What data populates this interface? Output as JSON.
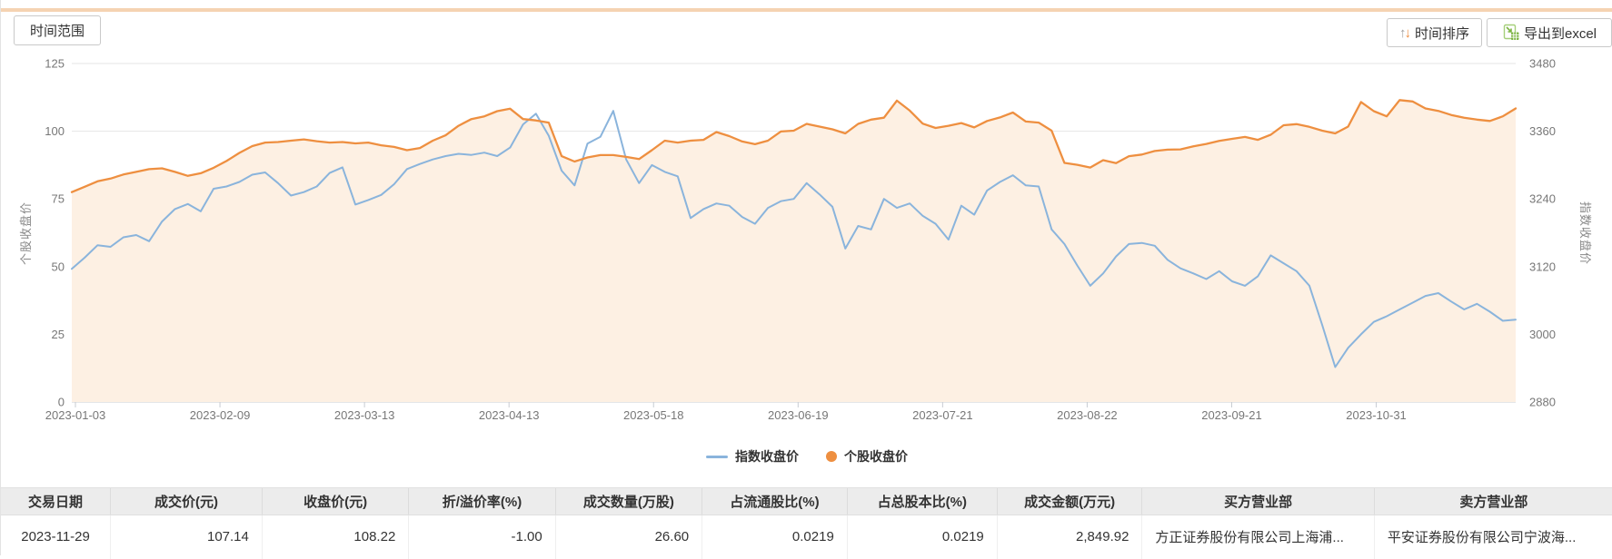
{
  "toolbar": {
    "time_range_label": "时间范围",
    "sort_label": "时间排序",
    "export_label": "导出到excel"
  },
  "colors": {
    "blue": "#8AB4DC",
    "orange": "#EE8F40",
    "area_fill": "#FDF0E3",
    "grid": "#E6E6E6",
    "axis_line": "#C8CCD2",
    "axis_text": "#777777",
    "text": "#333333",
    "top_bar": "#F5D3B2",
    "excel_green": "#7CB342",
    "sort_up": "#9E9E9E",
    "sort_down": "#EF8B3C",
    "header_bg": "#ECECEC"
  },
  "chart_data": {
    "type": "line",
    "title": "",
    "grid": true,
    "legend_position": "bottom-center",
    "x_ticks": [
      "2023-01-03",
      "2023-02-09",
      "2023-03-13",
      "2023-04-13",
      "2023-05-18",
      "2023-06-19",
      "2023-07-21",
      "2023-08-22",
      "2023-09-21",
      "2023-10-31"
    ],
    "left_axis": {
      "label": "个股收盘价",
      "min": 0,
      "max": 125,
      "ticks": [
        125,
        100,
        75,
        50,
        25,
        0
      ]
    },
    "right_axis": {
      "label": "指数收盘价",
      "min": 2880,
      "max": 3480,
      "ticks": [
        3480,
        3360,
        3240,
        3120,
        3000,
        2880
      ]
    },
    "legend": [
      {
        "label": "指数收盘价",
        "marker": "line",
        "color": "#8AB4DC"
      },
      {
        "label": "个股收盘价",
        "marker": "circle",
        "color": "#EE8F40"
      }
    ],
    "series": [
      {
        "name": "指数收盘价",
        "axis": "right",
        "type": "line",
        "color": "#8AB4DC",
        "values": [
          3116,
          3136,
          3158,
          3155,
          3172,
          3176,
          3165,
          3200,
          3222,
          3231,
          3218,
          3258,
          3262,
          3270,
          3283,
          3287,
          3268,
          3246,
          3252,
          3262,
          3286,
          3296,
          3230,
          3238,
          3247,
          3266,
          3293,
          3302,
          3310,
          3316,
          3320,
          3318,
          3322,
          3316,
          3331,
          3372,
          3391,
          3352,
          3290,
          3264,
          3338,
          3350,
          3396,
          3310,
          3268,
          3300,
          3288,
          3280,
          3206,
          3222,
          3232,
          3228,
          3208,
          3196,
          3224,
          3236,
          3240,
          3268,
          3248,
          3226,
          3152,
          3192,
          3186,
          3240,
          3224,
          3232,
          3210,
          3196,
          3168,
          3228,
          3212,
          3255,
          3270,
          3282,
          3264,
          3262,
          3186,
          3160,
          3122,
          3086,
          3108,
          3138,
          3160,
          3162,
          3157,
          3132,
          3117,
          3108,
          3098,
          3112,
          3094,
          3086,
          3103,
          3140,
          3126,
          3112,
          3086,
          3016,
          2942,
          2976,
          3000,
          3022,
          3032,
          3044,
          3056,
          3068,
          3073,
          3058,
          3044,
          3054,
          3040,
          3024,
          3026
        ]
      },
      {
        "name": "个股收盘价",
        "axis": "left",
        "type": "area",
        "color": "#EE8F40",
        "fill": "#FDF0E3",
        "values": [
          77.5,
          79.5,
          81.5,
          82.5,
          84,
          85,
          86,
          86.3,
          85,
          83.5,
          84.5,
          86.5,
          89,
          92,
          94.5,
          95.8,
          96,
          96.5,
          97,
          96.3,
          95.8,
          96,
          95.5,
          95.8,
          94.8,
          94.2,
          93,
          93.8,
          96.5,
          98.5,
          102,
          104.5,
          105.5,
          107.4,
          108.3,
          104.5,
          104,
          103.2,
          90.8,
          88.8,
          90.3,
          91.2,
          91.2,
          90.5,
          89.7,
          93,
          96.5,
          95.8,
          96.5,
          96.8,
          99.7,
          98.2,
          96.2,
          95.2,
          96.5,
          99.9,
          100.2,
          102.7,
          101.7,
          100.7,
          99.2,
          102.7,
          104.3,
          105,
          111.3,
          107.6,
          102.8,
          101.2,
          102,
          103,
          101.4,
          103.8,
          105.1,
          106.9,
          103.6,
          103.2,
          100.2,
          88.3,
          87.6,
          86.6,
          89.3,
          88.2,
          90.8,
          91.4,
          92.7,
          93.2,
          93.3,
          94.4,
          95.3,
          96.4,
          97.2,
          97.9,
          96.8,
          98.7,
          102.2,
          102.6,
          101.6,
          100.2,
          99.2,
          101.7,
          110.8,
          107.4,
          105.5,
          111.5,
          111,
          108.4,
          107.5,
          106,
          105,
          104.3,
          103.8,
          105.5,
          108.4
        ]
      }
    ]
  },
  "table": {
    "headers": [
      "交易日期",
      "成交价(元)",
      "收盘价(元)",
      "折/溢价率(%)",
      "成交数量(万股)",
      "占流通股比(%)",
      "占总股本比(%)",
      "成交金额(万元)",
      "买方营业部",
      "卖方营业部"
    ],
    "rows": [
      [
        "2023-11-29",
        "107.14",
        "108.22",
        "-1.00",
        "26.60",
        "0.0219",
        "0.0219",
        "2,849.92",
        "方正证券股份有限公司上海浦...",
        "平安证券股份有限公司宁波海..."
      ]
    ]
  }
}
